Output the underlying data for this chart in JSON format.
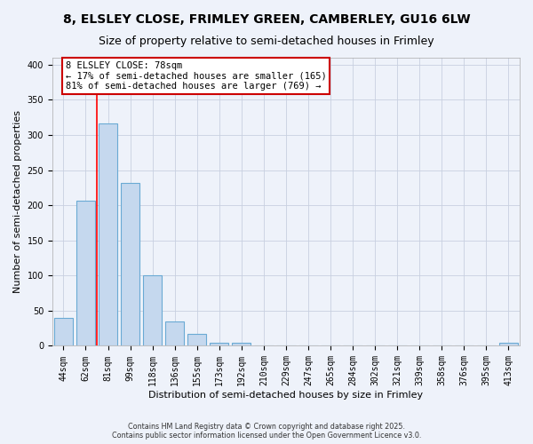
{
  "title": "8, ELSLEY CLOSE, FRIMLEY GREEN, CAMBERLEY, GU16 6LW",
  "subtitle": "Size of property relative to semi-detached houses in Frimley",
  "xlabel": "Distribution of semi-detached houses by size in Frimley",
  "ylabel": "Number of semi-detached properties",
  "categories": [
    "44sqm",
    "62sqm",
    "81sqm",
    "99sqm",
    "118sqm",
    "136sqm",
    "155sqm",
    "173sqm",
    "192sqm",
    "210sqm",
    "229sqm",
    "247sqm",
    "265sqm",
    "284sqm",
    "302sqm",
    "321sqm",
    "339sqm",
    "358sqm",
    "376sqm",
    "395sqm",
    "413sqm"
  ],
  "bar_heights": [
    40,
    207,
    316,
    232,
    100,
    35,
    17,
    4,
    4,
    0,
    0,
    0,
    0,
    0,
    0,
    0,
    0,
    0,
    0,
    0,
    4
  ],
  "bar_color": "#c5d8ee",
  "bar_edge_color": "#6aaad4",
  "red_line_x": 1.5,
  "annotation_text": "8 ELSLEY CLOSE: 78sqm\n← 17% of semi-detached houses are smaller (165)\n81% of semi-detached houses are larger (769) →",
  "annotation_box_color": "#ffffff",
  "annotation_box_edge_color": "#cc0000",
  "background_color": "#eef2fa",
  "footer_line1": "Contains HM Land Registry data © Crown copyright and database right 2025.",
  "footer_line2": "Contains public sector information licensed under the Open Government Licence v3.0.",
  "ylim": [
    0,
    410
  ],
  "yticks": [
    0,
    50,
    100,
    150,
    200,
    250,
    300,
    350,
    400
  ],
  "title_fontsize": 10,
  "subtitle_fontsize": 9,
  "tick_fontsize": 7,
  "axis_label_fontsize": 8
}
